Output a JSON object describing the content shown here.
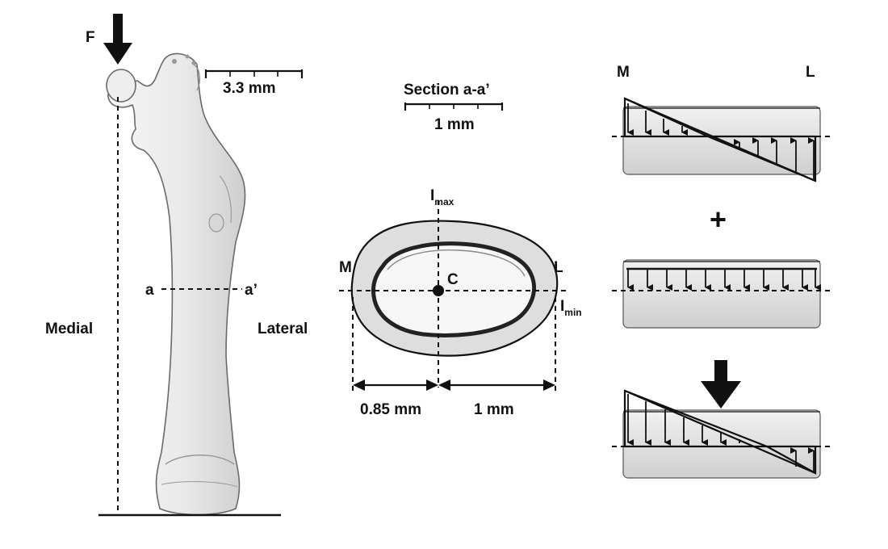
{
  "femur": {
    "force_label": "F",
    "scale_label": "3.3 mm",
    "section_left": "a",
    "section_right": "a’",
    "medial_label": "Medial",
    "lateral_label": "Lateral"
  },
  "section": {
    "title": "Section a-a’",
    "scale_label": "1 mm",
    "imax_main": "I",
    "imax_sub": "max",
    "imin_main": "I",
    "imin_sub": "min",
    "medial": "M",
    "lateral": "L",
    "centroid": "C",
    "dim_medial": "0.85 mm",
    "dim_lateral": "1 mm"
  },
  "stress": {
    "medial": "M",
    "lateral": "L",
    "plus": "+"
  },
  "colors": {
    "ink": "#111111",
    "bone_fill": "#e4e4e4",
    "cortex_fill": "#dcdcdc",
    "cylinder_fill": "#e6e6e6",
    "femur_stroke": "#6a6a6a"
  },
  "icons": [
    "force-arrow-icon",
    "load-arrow-icon",
    "plus-icon"
  ]
}
